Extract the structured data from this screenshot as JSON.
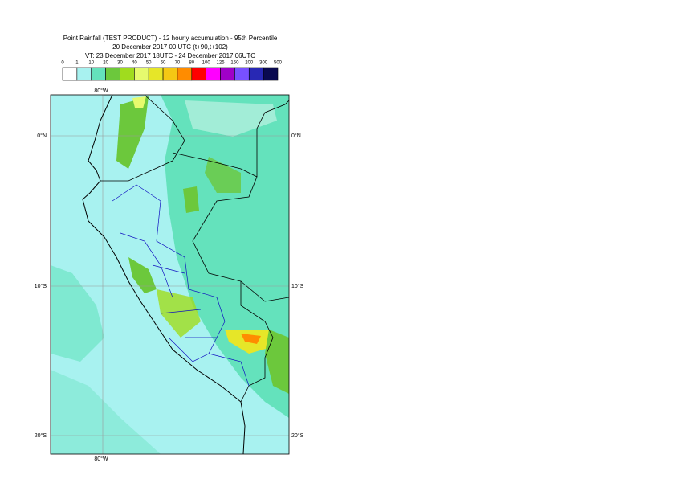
{
  "header": {
    "title": "Point Rainfall (TEST PRODUCT) - 12 hourly accumulation - 95th Percentile",
    "base": "20 December 2017 00 UTC (t+90,t+102)",
    "valid": "VT: 23 December 2017 18UTC - 24 December 2017 06UTC"
  },
  "legend": {
    "levels": [
      0,
      1,
      10,
      20,
      30,
      40,
      50,
      60,
      70,
      80,
      100,
      125,
      150,
      200,
      300,
      500
    ],
    "colors": [
      "#ffffff",
      "#a8f2f0",
      "#64e2bc",
      "#6cc83c",
      "#a0dc1e",
      "#e6fa6e",
      "#e6e628",
      "#f5c814",
      "#ff8c00",
      "#ff0000",
      "#ff00ff",
      "#a000c8",
      "#7850ff",
      "#2828b4",
      "#0a0a50"
    ]
  },
  "map": {
    "lon_labels": [
      "80°W"
    ],
    "lat_labels": [
      "0°N",
      "10°S",
      "20°S"
    ]
  }
}
